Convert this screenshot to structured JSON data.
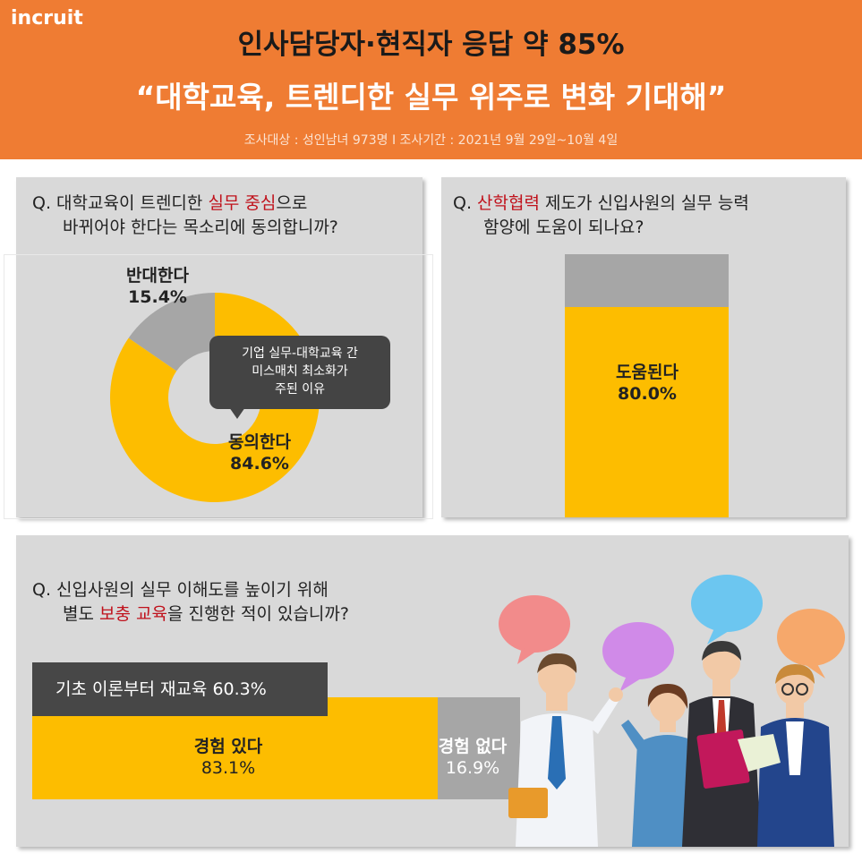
{
  "header": {
    "logo": "incruit",
    "title_line1": "인사담당자·현직자 응답 약 85%",
    "title_line2": "“대학교육, 트렌디한 실무 위주로 변화 기대해”",
    "subtitle": "조사대상 : 성인남녀 973명  I  조사기간 : 2021년 9월 29일~10월 4일"
  },
  "q1": {
    "line1_prefix": "Q. 대학교육이 트렌디한 ",
    "line1_highlight": "실무 중심",
    "line1_suffix": "으로",
    "line2": "바뀌어야 한다는 목소리에 동의합니까?",
    "callout_line1": "기업 실무-대학교육 간",
    "callout_line2": "미스매치 최소화가",
    "callout_line3": "주된 이유"
  },
  "q2": {
    "line1_prefix": "Q. ",
    "line1_highlight": "산학협력",
    "line1_suffix": " 제도가 신입사원의 실무 능력",
    "line2": "함양에 도움이 되나요?"
  },
  "q3": {
    "line1": "Q. 신입사원의 실무 이해도를 높이기 위해",
    "line2_prefix": "별도 ",
    "line2_highlight": "보충 교육",
    "line2_suffix": "을 진행한 적이 있습니까?",
    "sub_label": "기초 이론부터 재교육 60.3%"
  },
  "colors": {
    "accent": "#ef7c33",
    "yellow": "#fdbd00",
    "gray": "#a6a6a6",
    "dark": "#474747",
    "highlight": "#c0121c"
  },
  "chart_data": [
    {
      "type": "pie",
      "slices": [
        {
          "label": "동의한다",
          "value_label": "84.6%",
          "value": 84.6,
          "color": "#fdbd00"
        },
        {
          "label": "반대한다",
          "value_label": "15.4%",
          "value": 15.4,
          "color": "#a6a6a6"
        }
      ]
    },
    {
      "type": "bar",
      "stacked": true,
      "segments": [
        {
          "label": "도움된다",
          "value_label": "80.0%",
          "value": 80.0,
          "color": "#fdbd00"
        },
        {
          "label": "",
          "value": 20.0,
          "color": "#a6a6a6"
        }
      ]
    },
    {
      "type": "bar",
      "stacked": true,
      "orientation": "horizontal",
      "segments": [
        {
          "label": "경험 있다",
          "value_label": "83.1%",
          "value": 83.1,
          "color": "#fdbd00"
        },
        {
          "label": "경험 없다",
          "value_label": "16.9%",
          "value": 16.9,
          "color": "#a6a6a6"
        }
      ]
    }
  ]
}
